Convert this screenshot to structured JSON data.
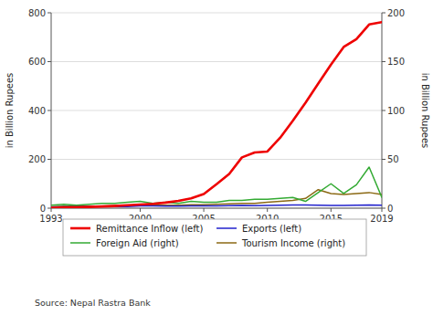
{
  "chart_data": {
    "type": "line",
    "x": [
      1993,
      1994,
      1995,
      1996,
      1997,
      1998,
      1999,
      2000,
      2001,
      2002,
      2003,
      2004,
      2005,
      2006,
      2007,
      2008,
      2009,
      2010,
      2011,
      2012,
      2013,
      2014,
      2015,
      2016,
      2017,
      2018,
      2019
    ],
    "xlim": [
      1993,
      2019
    ],
    "xticks": [
      1993,
      2000,
      2005,
      2010,
      2015,
      2019
    ],
    "ylim": [
      0,
      800
    ],
    "yticks": [
      0,
      200,
      400,
      600,
      800
    ],
    "y2lim": [
      0,
      200
    ],
    "y2ticks": [
      0,
      50,
      100,
      150,
      200
    ],
    "ylabel": "in Billion Rupees",
    "y2label": "in Billion Rupees",
    "source": "Source: Nepal Rastra Bank",
    "grid": true,
    "legend": "bottom",
    "series": [
      {
        "name": "Remittance Inflow (left)",
        "color": "#ee0000",
        "values": [
          2,
          3,
          4,
          5,
          7,
          9,
          12,
          15,
          18,
          23,
          30,
          40,
          58,
          98,
          140,
          208,
          228,
          232,
          288,
          358,
          432,
          510,
          588,
          660,
          692,
          752,
          762
        ]
      },
      {
        "name": "Exports (left)",
        "color": "#2222cc",
        "values": [
          5,
          6,
          6,
          7,
          7,
          7,
          7,
          9,
          9,
          8,
          8,
          9,
          9,
          9,
          10,
          11,
          10,
          11,
          12,
          13,
          13,
          12,
          11,
          11,
          12,
          13,
          12
        ]
      },
      {
        "name": "Foreign Aid (right)",
        "color": "#33aa33",
        "axis": "y2",
        "values": [
          3,
          4,
          3,
          4,
          5,
          5,
          6,
          7,
          5,
          6,
          5,
          7,
          6,
          6,
          8,
          8,
          9,
          9,
          10,
          11,
          7,
          16,
          25,
          15,
          24,
          42,
          11
        ]
      },
      {
        "name": "Tourism Income (right)",
        "color": "#8B6914",
        "axis": "y2",
        "values": [
          1.5,
          2,
          2,
          2,
          2,
          2.5,
          2.5,
          3,
          3,
          3,
          3,
          3.5,
          3.5,
          4,
          4.5,
          5,
          5,
          6,
          7,
          8,
          10,
          19,
          15,
          14,
          15,
          16,
          14
        ]
      }
    ]
  }
}
